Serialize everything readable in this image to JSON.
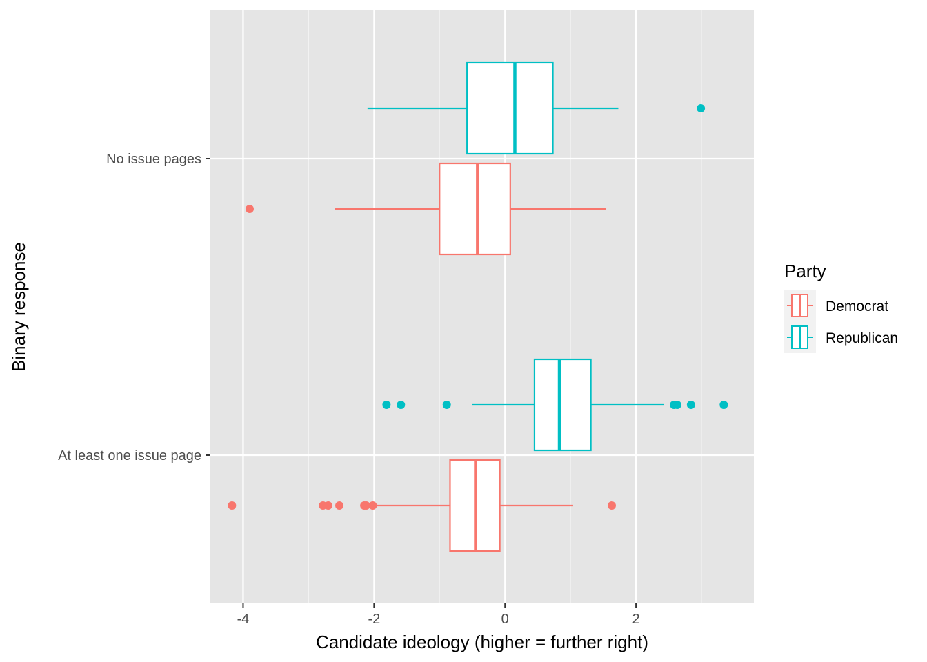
{
  "chart_data": {
    "type": "boxplot",
    "orientation": "horizontal",
    "xlabel": "Candidate ideology (higher = further right)",
    "ylabel": "Binary response",
    "xlim": [
      -4.5,
      3.8
    ],
    "x_ticks": [
      -4,
      -2,
      0,
      2
    ],
    "x_tick_labels": [
      "-4",
      "-2",
      "0",
      "2"
    ],
    "categories": [
      "No issue pages",
      "At least one issue page"
    ],
    "grid": true,
    "legend": {
      "title": "Party",
      "position": "right",
      "entries": [
        "Democrat",
        "Republican"
      ]
    },
    "series": [
      {
        "name": "Democrat",
        "color": "#F8766D",
        "boxes": [
          {
            "category": "No issue pages",
            "whisker_low": -2.6,
            "q1": -1.0,
            "median": -0.42,
            "q3": 0.08,
            "whisker_high": 1.54,
            "outliers": [
              -3.9
            ]
          },
          {
            "category": "At least one issue page",
            "whisker_low": -2.0,
            "q1": -0.84,
            "median": -0.45,
            "q3": -0.08,
            "whisker_high": 1.04,
            "outliers": [
              -4.17,
              -2.78,
              -2.7,
              -2.53,
              -2.15,
              -2.12,
              -2.02,
              1.63
            ]
          }
        ]
      },
      {
        "name": "Republican",
        "color": "#00BFC4",
        "boxes": [
          {
            "category": "No issue pages",
            "whisker_low": -2.1,
            "q1": -0.58,
            "median": 0.15,
            "q3": 0.73,
            "whisker_high": 1.73,
            "outliers": [
              2.99
            ]
          },
          {
            "category": "At least one issue page",
            "whisker_low": -0.5,
            "q1": 0.45,
            "median": 0.83,
            "q3": 1.31,
            "whisker_high": 2.43,
            "outliers": [
              -1.81,
              -1.59,
              -0.89,
              2.58,
              2.63,
              2.84,
              3.34
            ]
          }
        ]
      }
    ]
  }
}
